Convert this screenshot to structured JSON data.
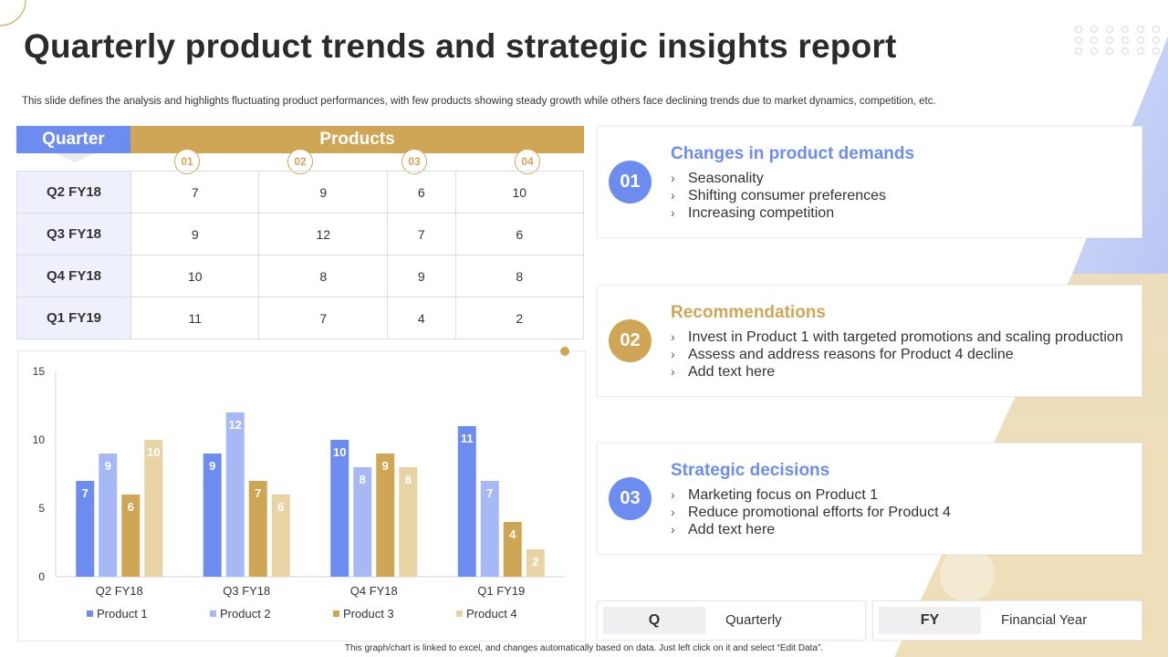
{
  "title": "Quarterly product trends and strategic insights report",
  "subtitle": "This slide defines the analysis and highlights fluctuating product performances, with few products showing steady growth while others face declining trends due to market dynamics, competition, etc.",
  "table": {
    "quarter_header": "Quarter",
    "products_header": "Products",
    "product_numbers": [
      "01",
      "02",
      "03",
      "04"
    ],
    "rows": [
      {
        "quarter": "Q2 FY18",
        "values": [
          "7",
          "9",
          "6",
          "10"
        ]
      },
      {
        "quarter": "Q3 FY18",
        "values": [
          "9",
          "12",
          "7",
          "6"
        ]
      },
      {
        "quarter": "Q4 FY18",
        "values": [
          "10",
          "8",
          "9",
          "8"
        ]
      },
      {
        "quarter": "Q1 FY19",
        "values": [
          "11",
          "7",
          "4",
          "2"
        ]
      }
    ]
  },
  "chart_data": {
    "type": "bar",
    "categories": [
      "Q2 FY18",
      "Q3 FY18",
      "Q4 FY18",
      "Q1 FY19"
    ],
    "series": [
      {
        "name": "Product 1",
        "values": [
          7,
          9,
          10,
          11
        ],
        "color": "#6d8cef"
      },
      {
        "name": "Product 2",
        "values": [
          9,
          12,
          8,
          7
        ],
        "color": "#a6b9f5"
      },
      {
        "name": "Product 3",
        "values": [
          6,
          7,
          9,
          4
        ],
        "color": "#cfa656"
      },
      {
        "name": "Product 4",
        "values": [
          10,
          6,
          8,
          2
        ],
        "color": "#e8d3a4"
      }
    ],
    "yticks": [
      "0",
      "5",
      "10",
      "15"
    ],
    "ylim": [
      0,
      15
    ],
    "legend_position": "bottom",
    "grid": false
  },
  "cards": [
    {
      "number": "01",
      "title": "Changes in product demands",
      "color": "#6d8cef",
      "badge_color": "#6d8cef",
      "items": [
        "Seasonality",
        "Shifting consumer preferences",
        "Increasing competition"
      ]
    },
    {
      "number": "02",
      "title": "Recommendations",
      "color": "#cfa656",
      "badge_color": "#cfa656",
      "items": [
        "Invest in Product 1 with targeted promotions and scaling production",
        "Assess and address reasons for Product 4 decline",
        "Add text here"
      ]
    },
    {
      "number": "03",
      "title": "Strategic decisions",
      "color": "#6d8cef",
      "badge_color": "#6d8cef",
      "items": [
        "Marketing focus on Product 1",
        "Reduce promotional efforts for Product 4",
        "Add text here"
      ]
    }
  ],
  "abbreviations": [
    {
      "key": "Q",
      "value": "Quarterly"
    },
    {
      "key": "FY",
      "value": "Financial Year"
    }
  ],
  "chevron": "›",
  "footnote": "This graph/chart is linked to excel, and changes automatically based on data. Just left click on it and select “Edit Data”."
}
